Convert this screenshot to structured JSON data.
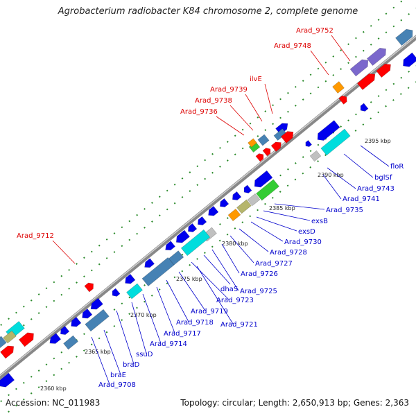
{
  "title": "Agrobacterium radiobacter K84 chromosome 2, complete genome",
  "accession": "Accession: NC_011983",
  "topology": "Topology: circular; Length: 2,650,913 bp; Genes: 2,363",
  "colors": {
    "red": "#ff0000",
    "blue": "#0000ee",
    "steel": "#4682b4",
    "cyan": "#00dddd",
    "orange": "#ff9900",
    "green": "#33cc33",
    "purple": "#7b68cc",
    "olive": "#b5b56b",
    "gray": "#c0c0c0",
    "label_red": "#dd0000",
    "label_blue": "#0000cc"
  },
  "ticks": [
    "2360 kbp",
    "2365 kbp",
    "2370 kbp",
    "2375 kbp",
    "2380 kbp",
    "2385 kbp",
    "2390 kbp",
    "2395 kbp"
  ],
  "upper_labels": [
    "Arad_9752",
    "Arad_9748",
    "ilvE",
    "Arad_9739",
    "Arad_9738",
    "Arad_9736",
    "Arad_9712"
  ],
  "lower_labels": [
    "floR",
    "bglSf",
    "Arad_9743",
    "Arad_9741",
    "Arad_9735",
    "exsB",
    "exsD",
    "Arad_9730",
    "Arad_9728",
    "Arad_9727",
    "Arad_9726",
    "Arad_9725",
    "dhaS",
    "Arad_9723",
    "Arad_9719",
    "Arad_9721",
    "Arad_9718",
    "Arad_9717",
    "Arad_9714",
    "ssuD",
    "braD",
    "braE",
    "Arad_9708"
  ]
}
